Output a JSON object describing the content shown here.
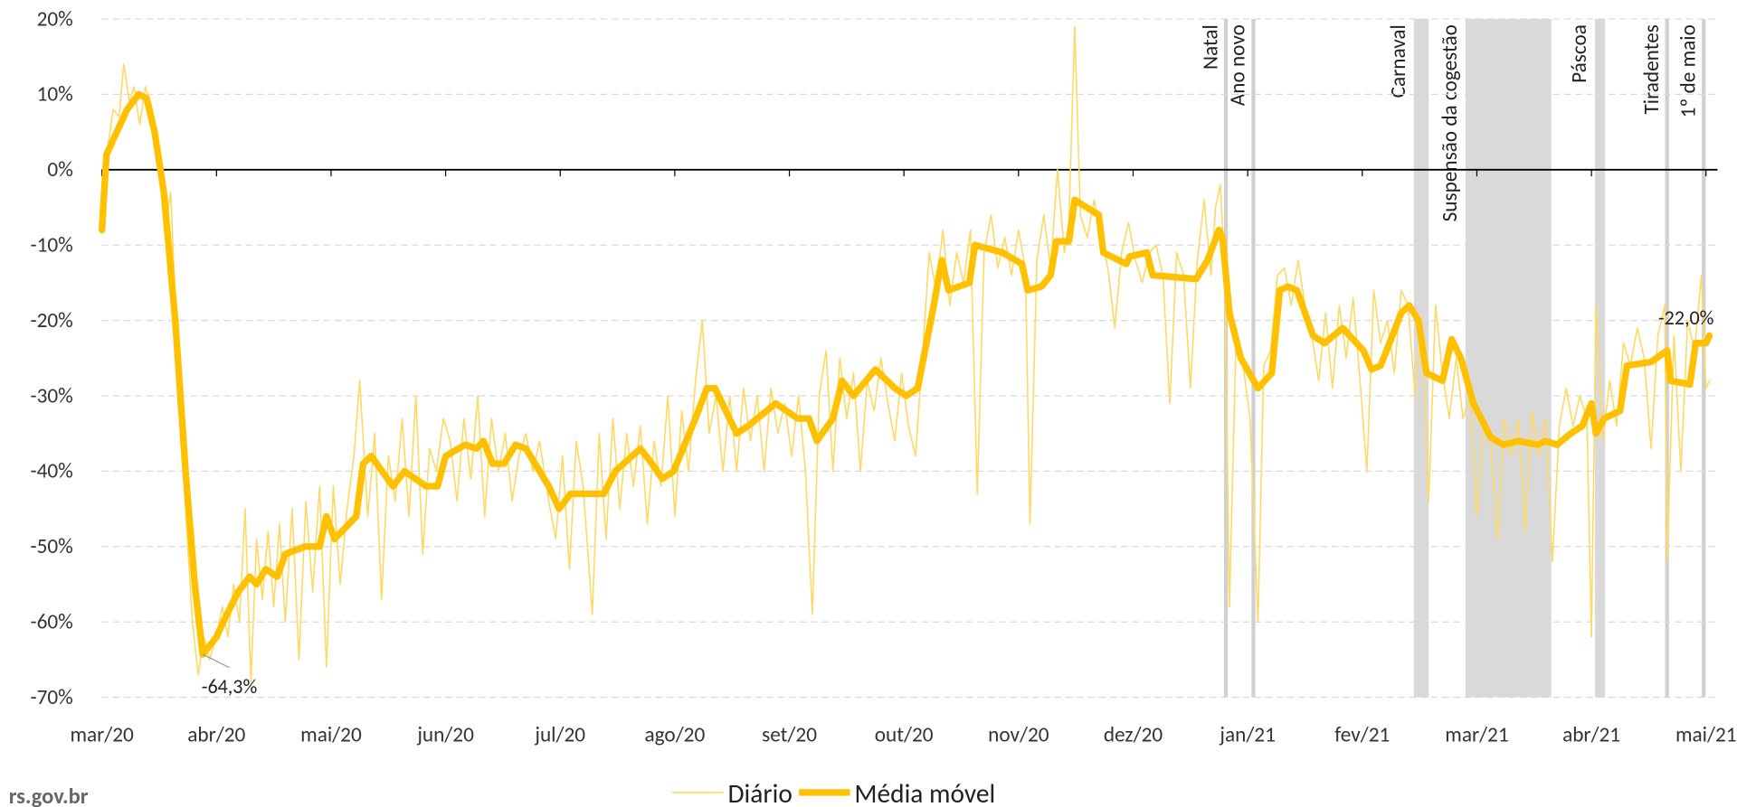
{
  "chart_data": {
    "type": "line",
    "xlim": [
      0,
      14.1
    ],
    "xticks": [
      {
        "value": 0,
        "label": "mar/20"
      },
      {
        "value": 1,
        "label": "abr/20"
      },
      {
        "value": 2,
        "label": "mai/20"
      },
      {
        "value": 3,
        "label": "jun/20"
      },
      {
        "value": 4,
        "label": "jul/20"
      },
      {
        "value": 5,
        "label": "ago/20"
      },
      {
        "value": 6,
        "label": "set/20"
      },
      {
        "value": 7,
        "label": "out/20"
      },
      {
        "value": 8,
        "label": "nov/20"
      },
      {
        "value": 9,
        "label": "dez/20"
      },
      {
        "value": 10,
        "label": "jan/21"
      },
      {
        "value": 11,
        "label": "fev/21"
      },
      {
        "value": 12,
        "label": "mar/21"
      },
      {
        "value": 13,
        "label": "abr/21"
      },
      {
        "value": 14,
        "label": "mai/21"
      }
    ],
    "ylim": [
      -70,
      20
    ],
    "yticks": [
      {
        "value": 20,
        "label": "20%"
      },
      {
        "value": 10,
        "label": "10%"
      },
      {
        "value": 0,
        "label": "0%"
      },
      {
        "value": -10,
        "label": "-10%"
      },
      {
        "value": -20,
        "label": "-20%"
      },
      {
        "value": -30,
        "label": "-30%"
      },
      {
        "value": -40,
        "label": "-40%"
      },
      {
        "value": -50,
        "label": "-50%"
      },
      {
        "value": -60,
        "label": "-60%"
      },
      {
        "value": -70,
        "label": "-70%"
      }
    ],
    "grid": true,
    "series": [
      {
        "name": "Diário",
        "color": "#ffd966",
        "width": 1.3,
        "x": [
          0,
          0.05,
          0.1,
          0.15,
          0.19,
          0.24,
          0.28,
          0.33,
          0.38,
          0.44,
          0.5,
          0.55,
          0.6,
          0.66,
          0.73,
          0.79,
          0.84,
          0.89,
          0.94,
          1.0,
          1.05,
          1.1,
          1.15,
          1.2,
          1.25,
          1.3,
          1.35,
          1.4,
          1.45,
          1.5,
          1.55,
          1.6,
          1.66,
          1.72,
          1.78,
          1.84,
          1.9,
          1.96,
          2.02,
          2.08,
          2.14,
          2.2,
          2.25,
          2.32,
          2.38,
          2.44,
          2.5,
          2.56,
          2.62,
          2.68,
          2.74,
          2.8,
          2.86,
          2.92,
          2.98,
          3.04,
          3.1,
          3.16,
          3.22,
          3.28,
          3.34,
          3.4,
          3.46,
          3.52,
          3.58,
          3.64,
          3.7,
          3.76,
          3.82,
          3.9,
          3.96,
          4.02,
          4.08,
          4.14,
          4.2,
          4.28,
          4.34,
          4.4,
          4.46,
          4.52,
          4.58,
          4.64,
          4.7,
          4.76,
          4.82,
          4.88,
          4.94,
          5.0,
          5.06,
          5.12,
          5.18,
          5.24,
          5.3,
          5.36,
          5.42,
          5.48,
          5.54,
          5.6,
          5.66,
          5.72,
          5.78,
          5.84,
          5.9,
          5.96,
          6.02,
          6.08,
          6.14,
          6.2,
          6.26,
          6.32,
          6.38,
          6.44,
          6.5,
          6.56,
          6.62,
          6.68,
          6.74,
          6.8,
          6.86,
          6.92,
          6.98,
          7.04,
          7.1,
          7.16,
          7.22,
          7.28,
          7.34,
          7.4,
          7.46,
          7.52,
          7.58,
          7.64,
          7.7,
          7.76,
          7.82,
          7.88,
          7.94,
          8.0,
          8.06,
          8.1,
          8.16,
          8.22,
          8.28,
          8.34,
          8.4,
          8.44,
          8.49,
          8.54,
          8.6,
          8.66,
          8.72,
          8.78,
          8.84,
          8.9,
          8.96,
          9.02,
          9.08,
          9.14,
          9.2,
          9.26,
          9.32,
          9.38,
          9.44,
          9.5,
          9.56,
          9.62,
          9.68,
          9.72,
          9.76,
          9.8,
          9.84,
          9.9,
          9.96,
          10.02,
          10.09,
          10.14,
          10.2,
          10.26,
          10.32,
          10.38,
          10.44,
          10.5,
          10.56,
          10.62,
          10.68,
          10.74,
          10.8,
          10.86,
          10.92,
          10.98,
          11.04,
          11.1,
          11.16,
          11.22,
          11.28,
          11.34,
          11.4,
          11.46,
          11.52,
          11.58,
          11.64,
          11.7,
          11.76,
          11.82,
          11.88,
          11.94,
          12.0,
          12.06,
          12.12,
          12.18,
          12.24,
          12.3,
          12.36,
          12.42,
          12.48,
          12.54,
          12.6,
          12.66,
          12.72,
          12.78,
          12.84,
          12.9,
          12.96,
          13.0,
          13.04,
          13.1,
          13.16,
          13.22,
          13.28,
          13.34,
          13.4,
          13.46,
          13.52,
          13.58,
          13.64,
          13.66,
          13.72,
          13.78,
          13.84,
          13.9,
          13.96,
          14.0,
          14.03
        ],
        "values": [
          -7,
          3,
          8,
          7,
          14,
          9,
          11,
          6,
          11,
          8,
          2,
          -8,
          -3,
          -25,
          -45,
          -60,
          -67,
          -62,
          -65,
          -62,
          -58,
          -62,
          -55,
          -60,
          -45,
          -68,
          -49,
          -57,
          -48,
          -58,
          -47,
          -60,
          -45,
          -65,
          -44,
          -56,
          -42,
          -66,
          -42,
          -55,
          -45,
          -38,
          -28,
          -46,
          -35,
          -57,
          -38,
          -44,
          -33,
          -46,
          -30,
          -51,
          -37,
          -40,
          -33,
          -36,
          -44,
          -33,
          -41,
          -30,
          -46,
          -33,
          -40,
          -35,
          -44,
          -38,
          -35,
          -40,
          -36,
          -44,
          -49,
          -38,
          -53,
          -36,
          -42,
          -59,
          -35,
          -49,
          -33,
          -45,
          -35,
          -42,
          -34,
          -47,
          -36,
          -42,
          -30,
          -46,
          -32,
          -40,
          -28,
          -20,
          -35,
          -30,
          -40,
          -30,
          -40,
          -29,
          -36,
          -30,
          -40,
          -29,
          -35,
          -31,
          -38,
          -30,
          -40,
          -59,
          -30,
          -24,
          -40,
          -25,
          -33,
          -27,
          -40,
          -28,
          -32,
          -25,
          -31,
          -36,
          -27,
          -34,
          -38,
          -25,
          -11,
          -16,
          -8,
          -18,
          -11,
          -15,
          -8,
          -43,
          -11,
          -6,
          -13,
          -9,
          -14,
          -8,
          -13,
          -47,
          -12,
          -6,
          -13,
          0,
          -11,
          -7,
          19,
          -6,
          -9,
          -4,
          -9,
          -13,
          -21,
          -11,
          -7,
          -12,
          -15,
          -11,
          -10,
          -14,
          -31,
          -11,
          -14,
          -29,
          -12,
          -4,
          -14,
          -5,
          -2,
          -13,
          -58,
          -21,
          -26,
          -33,
          -60,
          -26,
          -24,
          -14,
          -13,
          -18,
          -12,
          -18,
          -22,
          -28,
          -19,
          -29,
          -18,
          -25,
          -17,
          -28,
          -40,
          -16,
          -23,
          -20,
          -27,
          -16,
          -18,
          -30,
          -20,
          -44,
          -18,
          -27,
          -33,
          -25,
          -33,
          -30,
          -46,
          -33,
          -36,
          -49,
          -33,
          -38,
          -33,
          -48,
          -32,
          -38,
          -33,
          -52,
          -34,
          -29,
          -34,
          -30,
          -33,
          -62,
          -18,
          -36,
          -28,
          -34,
          -23,
          -26,
          -21,
          -25,
          -37,
          -22,
          -18,
          -52,
          -22,
          -40,
          -20,
          -24,
          -14,
          -29,
          -28
        ]
      },
      {
        "name": "Média móvel",
        "color": "#ffc000",
        "width": 6,
        "x": [
          0,
          0.04,
          0.13,
          0.22,
          0.32,
          0.39,
          0.46,
          0.54,
          0.64,
          0.73,
          0.81,
          0.88,
          1.0,
          1.09,
          1.19,
          1.29,
          1.35,
          1.43,
          1.53,
          1.6,
          1.77,
          1.9,
          1.96,
          2.03,
          2.22,
          2.28,
          2.35,
          2.54,
          2.64,
          2.83,
          2.93,
          3.0,
          3.17,
          3.27,
          3.33,
          3.41,
          3.51,
          3.61,
          3.7,
          3.9,
          3.99,
          4.09,
          4.38,
          4.48,
          4.7,
          4.8,
          4.89,
          4.99,
          5.18,
          5.28,
          5.35,
          5.54,
          5.64,
          5.88,
          6.07,
          6.17,
          6.24,
          6.38,
          6.46,
          6.56,
          6.75,
          6.92,
          7.02,
          7.12,
          7.26,
          7.33,
          7.39,
          7.57,
          7.62,
          7.86,
          8.03,
          8.08,
          8.2,
          8.28,
          8.33,
          8.44,
          8.49,
          8.7,
          8.74,
          8.94,
          8.97,
          9.12,
          9.17,
          9.55,
          9.65,
          9.75,
          9.78,
          9.84,
          9.94,
          10.09,
          10.21,
          10.28,
          10.35,
          10.43,
          10.57,
          10.67,
          10.83,
          11.01,
          11.08,
          11.16,
          11.34,
          11.41,
          11.49,
          11.56,
          11.7,
          11.78,
          11.86,
          11.97,
          12.12,
          12.23,
          12.36,
          12.53,
          12.6,
          12.7,
          12.82,
          12.92,
          13.0,
          13.04,
          13.11,
          13.25,
          13.31,
          13.52,
          13.66,
          13.69,
          13.86,
          13.91,
          14.0,
          14.03
        ],
        "values": [
          -8,
          2,
          5,
          8,
          10,
          9.5,
          5,
          -3,
          -20,
          -40,
          -55,
          -64.3,
          -62,
          -59,
          -56,
          -54,
          -55,
          -53,
          -54,
          -51,
          -50,
          -50,
          -46,
          -49,
          -46,
          -39,
          -38,
          -42,
          -40,
          -42,
          -42,
          -38,
          -36.5,
          -37,
          -36,
          -39,
          -39,
          -36.5,
          -37,
          -42,
          -45,
          -43,
          -43,
          -40,
          -37,
          -39,
          -41,
          -40,
          -33,
          -29,
          -29,
          -35,
          -34,
          -31,
          -33,
          -33,
          -36,
          -33,
          -28,
          -30,
          -26.5,
          -29,
          -30,
          -29,
          -18,
          -12,
          -16,
          -15,
          -10,
          -11,
          -12.5,
          -16,
          -15.5,
          -14,
          -9.5,
          -9.5,
          -4,
          -6,
          -11,
          -12.5,
          -11.5,
          -11,
          -14,
          -14.5,
          -12,
          -8,
          -9,
          -19,
          -25,
          -29,
          -27,
          -16,
          -15.5,
          -16,
          -22,
          -23,
          -21,
          -24,
          -26.5,
          -26,
          -19,
          -18,
          -20,
          -27,
          -28,
          -22.5,
          -25,
          -31,
          -35.5,
          -36.5,
          -36,
          -36.5,
          -36,
          -36.5,
          -35,
          -34,
          -31,
          -35,
          -33,
          -32,
          -26,
          -25.5,
          -24,
          -28,
          -28.5,
          -23,
          -23,
          -22
        ],
        "point_labels": [
          {
            "index": 11,
            "label": "-64,3%"
          },
          {
            "index": 127,
            "label": "-22,0%"
          }
        ]
      }
    ],
    "annotations": [
      {
        "label": "Natal",
        "x": [
          9.81,
          9.81
        ]
      },
      {
        "label": "Ano novo",
        "x": [
          10.05,
          10.05
        ]
      },
      {
        "label": "Carnaval",
        "x": [
          11.45,
          11.58
        ]
      },
      {
        "label": "Suspensão da cogestão",
        "x": [
          11.9,
          12.65
        ]
      },
      {
        "label": "Páscoa",
        "x": [
          13.03,
          13.12
        ]
      },
      {
        "label": "Tiradentes",
        "x": [
          13.66,
          13.66
        ]
      },
      {
        "label": "1º de maio",
        "x": [
          13.98,
          13.98
        ]
      }
    ],
    "source": "rs.gov.br"
  }
}
